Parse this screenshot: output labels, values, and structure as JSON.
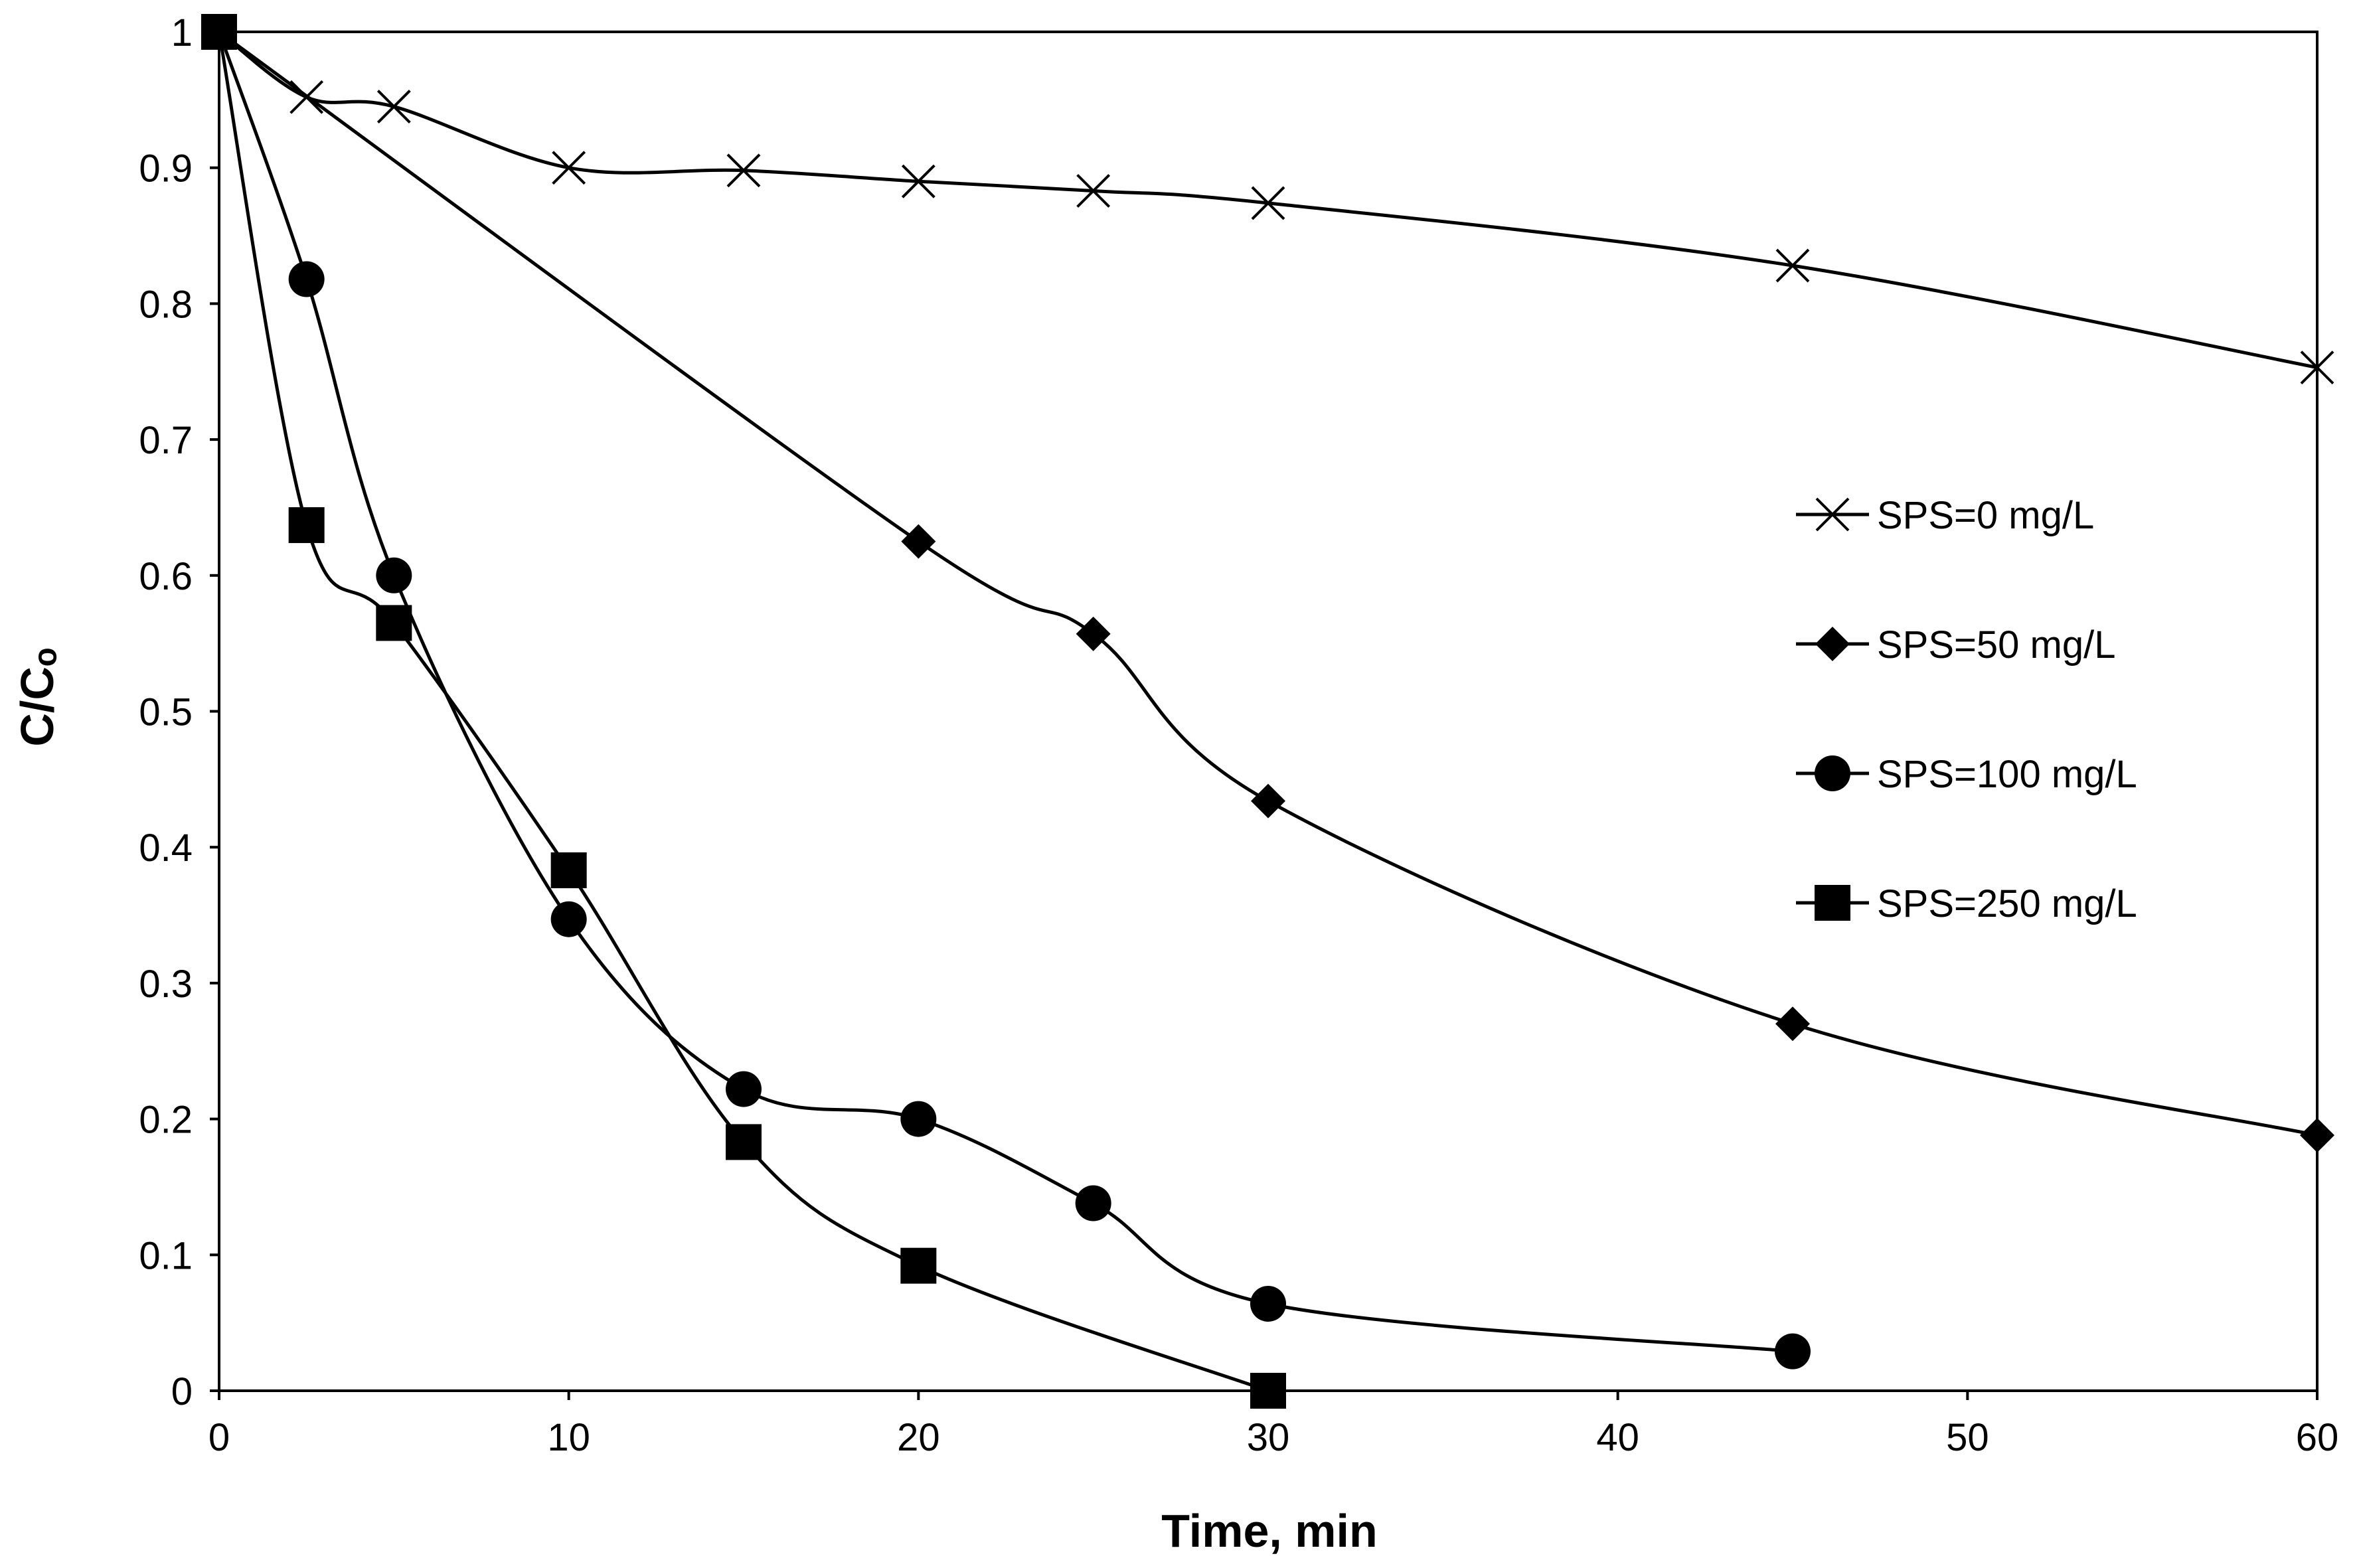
{
  "chart_data": {
    "type": "line",
    "title": "",
    "xlabel": "Time, min",
    "ylabel": "C/Cₒ",
    "xlim": [
      0,
      60
    ],
    "ylim": [
      0,
      1
    ],
    "xticks": [
      0,
      10,
      20,
      30,
      40,
      50,
      60
    ],
    "yticks": [
      0,
      0.1,
      0.2,
      0.3,
      0.4,
      0.5,
      0.6,
      0.7,
      0.8,
      0.9,
      1
    ],
    "x_tick_labels": [
      "0",
      "10",
      "20",
      "30",
      "40",
      "50",
      "60"
    ],
    "y_tick_labels": [
      "0",
      "0.1",
      "0.2",
      "0.3",
      "0.4",
      "0.5",
      "0.6",
      "0.7",
      "0.8",
      "0.9",
      "1"
    ],
    "grid": false,
    "legend_position": "right",
    "smoothed": true,
    "series": [
      {
        "name": "SPS=0 mg/L",
        "marker": "x",
        "x": [
          0,
          2.5,
          5,
          10,
          15,
          20,
          25,
          30,
          45,
          60
        ],
        "y": [
          1,
          0.952,
          0.945,
          0.9,
          0.898,
          0.89,
          0.883,
          0.874,
          0.828,
          0.753
        ]
      },
      {
        "name": "SPS=50 mg/L",
        "marker": "diamond",
        "x": [
          0,
          20,
          25,
          30,
          45,
          60
        ],
        "y": [
          1,
          0.625,
          0.557,
          0.434,
          0.27,
          0.188
        ]
      },
      {
        "name": "SPS=100 mg/L",
        "marker": "circle",
        "x": [
          0,
          2.5,
          5,
          10,
          15,
          20,
          25,
          30,
          45
        ],
        "y": [
          1,
          0.818,
          0.6,
          0.347,
          0.222,
          0.2,
          0.138,
          0.064,
          0.029
        ]
      },
      {
        "name": "SPS=250 mg/L",
        "marker": "square",
        "x": [
          0,
          2.5,
          5,
          10,
          15,
          20,
          30
        ],
        "y": [
          1,
          0.637,
          0.565,
          0.383,
          0.183,
          0.092,
          0
        ]
      }
    ]
  },
  "colors": {
    "ink": "#000000",
    "background": "#ffffff"
  }
}
